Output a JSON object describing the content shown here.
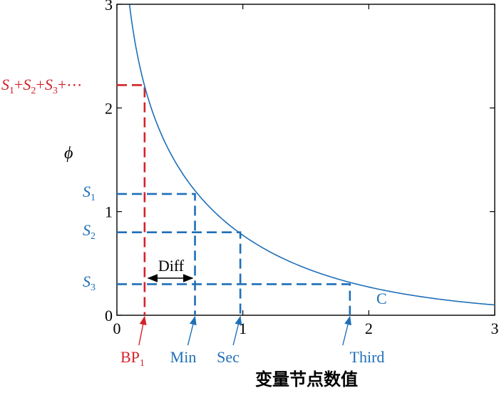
{
  "colors": {
    "curve": "#1f6fb8",
    "guide_blue": "#1f6fb8",
    "guide_red": "#d2232a",
    "axis": "#000000"
  },
  "chart_data": {
    "type": "line",
    "title": "",
    "xlabel": "变量节点数值",
    "ylabel": "ϕ",
    "xlim": [
      0,
      3
    ],
    "ylim": [
      0,
      3
    ],
    "xticks": [
      "0",
      "1",
      "2",
      "3"
    ],
    "yticks": [
      "0",
      "1",
      "2",
      "3"
    ],
    "grid": false,
    "series": [
      {
        "name": "C",
        "function": "phi(x) = -ln(tanh(x/2))",
        "x": [
          0.12,
          0.2,
          0.3,
          0.4,
          0.5,
          0.6,
          0.7,
          0.8,
          0.9,
          1.0,
          1.2,
          1.4,
          1.6,
          1.8,
          2.0,
          2.2,
          2.4,
          2.6,
          2.8,
          3.0
        ],
        "y": [
          2.81,
          2.3,
          1.9,
          1.62,
          1.4,
          1.22,
          1.07,
          0.95,
          0.84,
          0.77,
          0.6,
          0.49,
          0.4,
          0.33,
          0.27,
          0.22,
          0.18,
          0.15,
          0.12,
          0.1
        ]
      }
    ],
    "guides": [
      {
        "label": "S₁+S₂+S₃+⋯",
        "y": 2.22,
        "x": 0.22,
        "x_label": "BP₁",
        "color": "red"
      },
      {
        "label": "S₁",
        "y": 1.17,
        "x": 0.62,
        "x_label": "Min",
        "color": "blue"
      },
      {
        "label": "S₂",
        "y": 0.8,
        "x": 0.98,
        "x_label": "Sec",
        "color": "blue"
      },
      {
        "label": "S₃",
        "y": 0.3,
        "x": 1.85,
        "x_label": "Third",
        "color": "blue"
      }
    ],
    "annotations": [
      {
        "text": "Diff",
        "from_x": 0.22,
        "to_x": 0.62,
        "y": 0.34
      },
      {
        "text": "C",
        "x": 2.05,
        "y": 0.15
      }
    ]
  },
  "labels": {
    "s1": {
      "main": "S",
      "sub": "1"
    },
    "s2": {
      "main": "S",
      "sub": "2"
    },
    "s3": {
      "main": "S",
      "sub": "3"
    },
    "sum": {
      "s": "S",
      "sub1": "1",
      "sub2": "2",
      "sub3": "3",
      "plus": "+",
      "dots": "+⋯"
    },
    "bp": {
      "main": "BP",
      "sub": "1"
    },
    "min": "Min",
    "sec": "Sec",
    "third": "Third",
    "diff": "Diff",
    "curve": "C"
  }
}
